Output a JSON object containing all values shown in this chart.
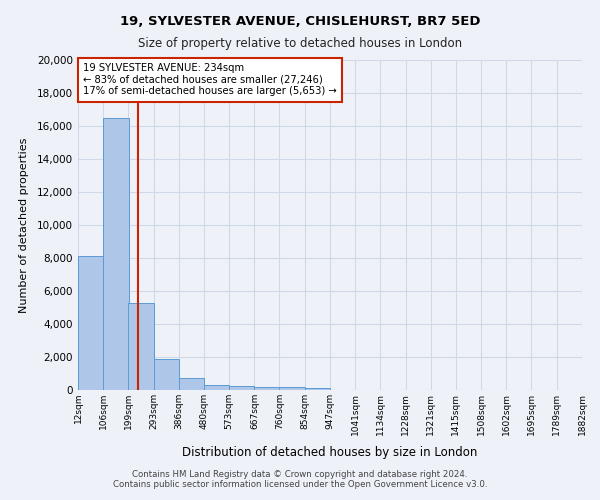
{
  "title1": "19, SYLVESTER AVENUE, CHISLEHURST, BR7 5ED",
  "title2": "Size of property relative to detached houses in London",
  "xlabel": "Distribution of detached houses by size in London",
  "ylabel": "Number of detached properties",
  "footer1": "Contains HM Land Registry data © Crown copyright and database right 2024.",
  "footer2": "Contains public sector information licensed under the Open Government Licence v3.0.",
  "annotation_line1": "19 SYLVESTER AVENUE: 234sqm",
  "annotation_line2": "← 83% of detached houses are smaller (27,246)",
  "annotation_line3": "17% of semi-detached houses are larger (5,653) →",
  "property_size_sqm": 234,
  "bar_left_edges": [
    12,
    106,
    199,
    293,
    386,
    480,
    573,
    667,
    760,
    854,
    947,
    1041,
    1134,
    1228,
    1321,
    1415,
    1508,
    1602,
    1695,
    1789
  ],
  "bar_heights": [
    8100,
    16500,
    5300,
    1850,
    700,
    300,
    220,
    200,
    170,
    150,
    0,
    0,
    0,
    0,
    0,
    0,
    0,
    0,
    0,
    0
  ],
  "tick_labels": [
    "12sqm",
    "106sqm",
    "199sqm",
    "293sqm",
    "386sqm",
    "480sqm",
    "573sqm",
    "667sqm",
    "760sqm",
    "854sqm",
    "947sqm",
    "1041sqm",
    "1134sqm",
    "1228sqm",
    "1321sqm",
    "1415sqm",
    "1508sqm",
    "1602sqm",
    "1695sqm",
    "1789sqm",
    "1882sqm"
  ],
  "bar_color": "#aec6e8",
  "bar_edge_color": "#5b9bd5",
  "red_line_color": "#cc2200",
  "grid_color": "#d0d8e8",
  "bg_color": "#eef2f8",
  "ylim": [
    0,
    20000
  ],
  "yticks": [
    0,
    2000,
    4000,
    6000,
    8000,
    10000,
    12000,
    14000,
    16000,
    18000,
    20000
  ]
}
